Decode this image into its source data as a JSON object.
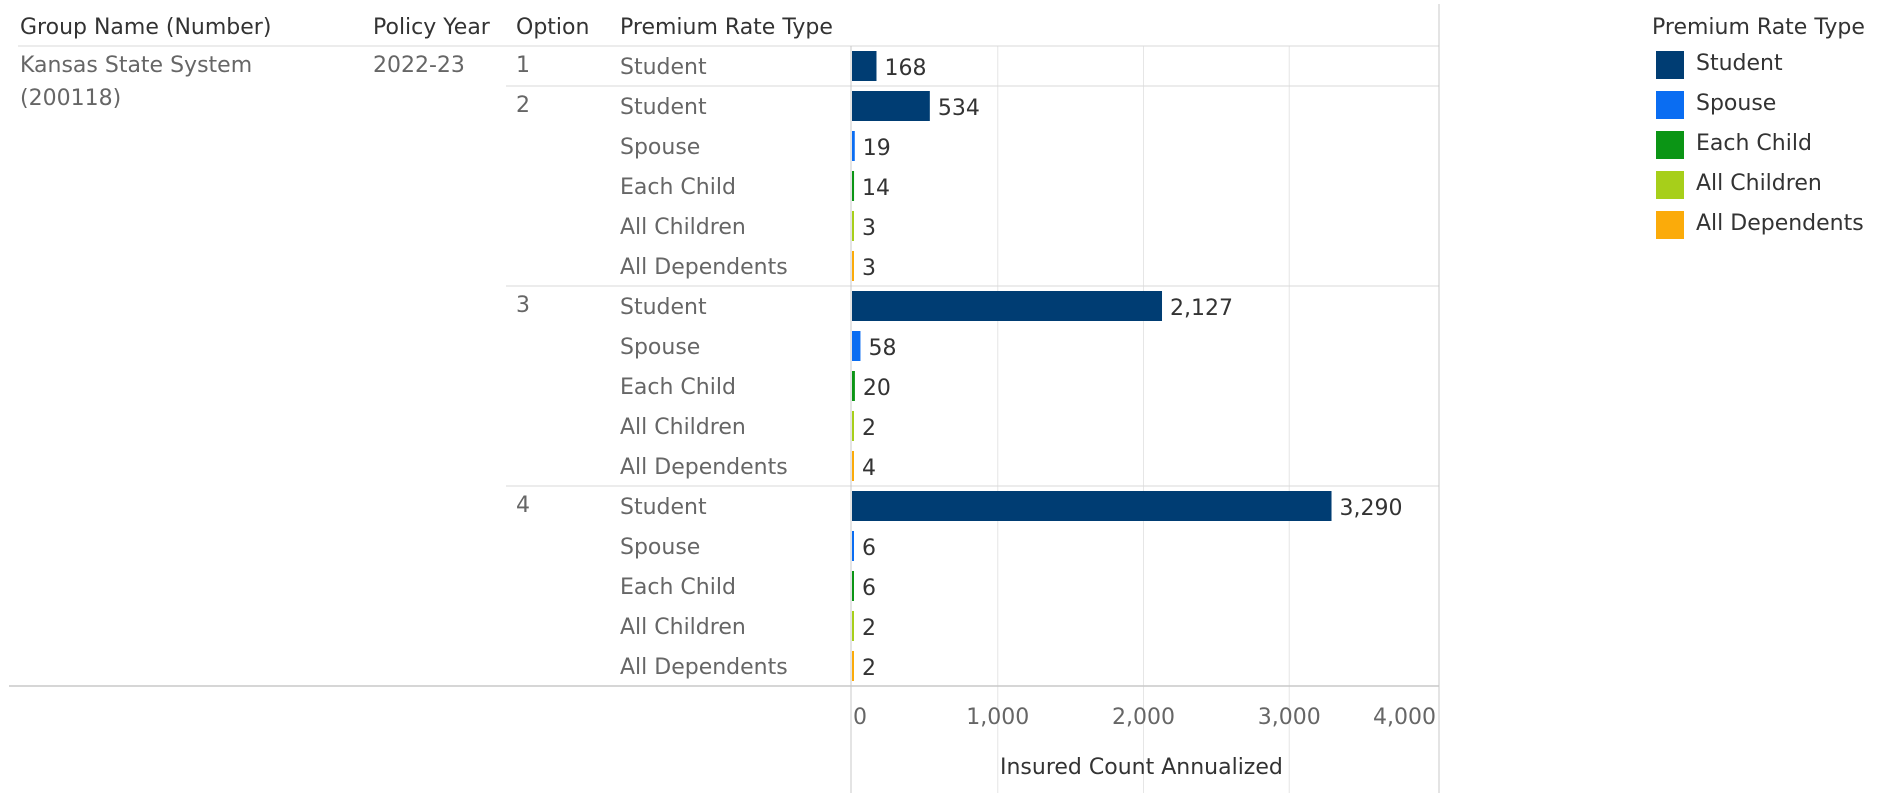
{
  "headers": {
    "group": "Group Name (Number)",
    "policy_year": "Policy Year",
    "option": "Option",
    "rate_type": "Premium Rate Type"
  },
  "group_name_line1": "Kansas State System",
  "group_name_line2": "(200118)",
  "policy_year": "2022-23",
  "colors": {
    "Student": "#003d73",
    "Spouse": "#0a6df2",
    "Each Child": "#0b9515",
    "All Children": "#a7cf1a",
    "All Dependents": "#fbab0a"
  },
  "legend": {
    "title": "Premium Rate Type",
    "items": [
      "Student",
      "Spouse",
      "Each Child",
      "All Children",
      "All Dependents"
    ]
  },
  "chart_data": {
    "type": "bar",
    "orientation": "horizontal",
    "xlabel": "Insured Count Annualized",
    "xlim": [
      0,
      4000
    ],
    "xticks": [
      0,
      1000,
      2000,
      3000,
      4000
    ],
    "xtick_labels": [
      "0",
      "1,000",
      "2,000",
      "3,000",
      "4,000"
    ],
    "grid": true,
    "legend_position": "top-right",
    "groups": [
      {
        "option": "1",
        "rows": [
          {
            "type": "Student",
            "value": 168,
            "label": "168"
          }
        ]
      },
      {
        "option": "2",
        "rows": [
          {
            "type": "Student",
            "value": 534,
            "label": "534"
          },
          {
            "type": "Spouse",
            "value": 19,
            "label": "19"
          },
          {
            "type": "Each Child",
            "value": 14,
            "label": "14"
          },
          {
            "type": "All Children",
            "value": 3,
            "label": "3"
          },
          {
            "type": "All Dependents",
            "value": 3,
            "label": "3"
          }
        ]
      },
      {
        "option": "3",
        "rows": [
          {
            "type": "Student",
            "value": 2127,
            "label": "2,127"
          },
          {
            "type": "Spouse",
            "value": 58,
            "label": "58"
          },
          {
            "type": "Each Child",
            "value": 20,
            "label": "20"
          },
          {
            "type": "All Children",
            "value": 2,
            "label": "2"
          },
          {
            "type": "All Dependents",
            "value": 4,
            "label": "4"
          }
        ]
      },
      {
        "option": "4",
        "rows": [
          {
            "type": "Student",
            "value": 3290,
            "label": "3,290"
          },
          {
            "type": "Spouse",
            "value": 6,
            "label": "6"
          },
          {
            "type": "Each Child",
            "value": 6,
            "label": "6"
          },
          {
            "type": "All Children",
            "value": 2,
            "label": "2"
          },
          {
            "type": "All Dependents",
            "value": 2,
            "label": "2"
          }
        ]
      }
    ]
  }
}
